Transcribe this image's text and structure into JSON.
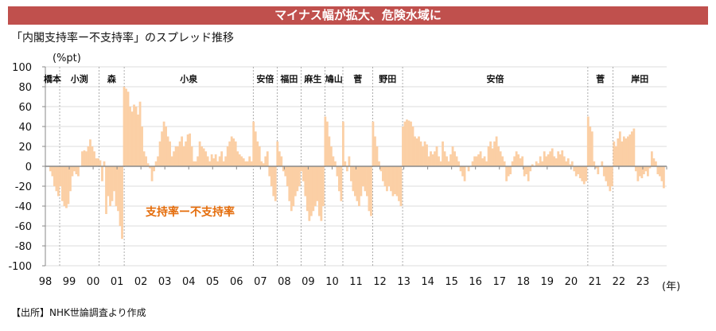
{
  "header": {
    "banner": "マイナス幅が拡大、危険水域に"
  },
  "subtitle": "「内閣支持率ー不支持率」のスプレッド推移",
  "source": "【出所】NHK世論調査より作成",
  "chart_data": {
    "type": "bar",
    "title": "「内閣支持率ー不支持率」のスプレッド推移",
    "ylabel": "(%pt)",
    "xlabel": "(年)",
    "ylim": [
      -100,
      100
    ],
    "xlim": [
      1998,
      2024
    ],
    "yticks": [
      100,
      80,
      60,
      40,
      20,
      0,
      -20,
      -40,
      -60,
      -80,
      -100
    ],
    "xtick_labels": [
      "98",
      "99",
      "00",
      "01",
      "02",
      "03",
      "04",
      "05",
      "06",
      "07",
      "08",
      "09",
      "10",
      "11",
      "12",
      "13",
      "14",
      "15",
      "16",
      "17",
      "18",
      "19",
      "20",
      "21",
      "22",
      "23"
    ],
    "grid": true,
    "series_name": "支持率ー不支持率",
    "color": "#fbcfa5",
    "start_month": "1998-03",
    "frequency": "monthly",
    "values": [
      -5,
      -10,
      -20,
      -25,
      -30,
      -20,
      -35,
      -40,
      -42,
      -38,
      -25,
      -10,
      -5,
      -8,
      -10,
      0,
      15,
      16,
      15,
      20,
      27,
      20,
      15,
      8,
      8,
      6,
      -15,
      5,
      -48,
      -30,
      -40,
      -35,
      -25,
      -40,
      -45,
      -60,
      -73,
      80,
      78,
      75,
      60,
      55,
      62,
      60,
      52,
      65,
      40,
      15,
      10,
      3,
      -2,
      -15,
      -5,
      5,
      10,
      25,
      35,
      45,
      40,
      30,
      25,
      10,
      15,
      20,
      20,
      25,
      30,
      20,
      25,
      32,
      33,
      20,
      5,
      5,
      10,
      25,
      20,
      18,
      15,
      10,
      5,
      12,
      8,
      12,
      5,
      10,
      15,
      5,
      10,
      20,
      25,
      30,
      28,
      25,
      15,
      12,
      10,
      8,
      5,
      5,
      10,
      5,
      45,
      35,
      25,
      20,
      5,
      3,
      10,
      15,
      -10,
      -20,
      -30,
      -35,
      25,
      15,
      10,
      -5,
      -10,
      -20,
      -35,
      -45,
      -40,
      -30,
      -25,
      -20,
      -5,
      -15,
      -30,
      -45,
      -55,
      -50,
      -45,
      -40,
      -35,
      -50,
      -55,
      -40,
      50,
      45,
      30,
      20,
      10,
      5,
      -10,
      -25,
      -35,
      45,
      5,
      -5,
      10,
      -15,
      -25,
      -30,
      -35,
      -40,
      -30,
      -20,
      -25,
      -30,
      -45,
      -50,
      45,
      30,
      20,
      5,
      -5,
      -15,
      -20,
      -25,
      -20,
      -25,
      -30,
      -28,
      -30,
      -35,
      -40,
      40,
      45,
      47,
      46,
      45,
      40,
      30,
      28,
      30,
      25,
      20,
      25,
      22,
      10,
      15,
      12,
      15,
      20,
      10,
      5,
      25,
      15,
      10,
      5,
      12,
      20,
      15,
      10,
      5,
      -5,
      -10,
      -15,
      0,
      -5,
      0,
      5,
      10,
      10,
      12,
      15,
      8,
      10,
      5,
      20,
      25,
      18,
      25,
      30,
      20,
      15,
      10,
      5,
      -15,
      -10,
      -8,
      5,
      10,
      15,
      12,
      8,
      10,
      -10,
      -8,
      -15,
      -5,
      2,
      0,
      5,
      3,
      10,
      5,
      15,
      10,
      12,
      15,
      18,
      10,
      8,
      15,
      12,
      16,
      10,
      5,
      8,
      2,
      5,
      -5,
      -10,
      -8,
      -12,
      -15,
      -18,
      -15,
      50,
      40,
      35,
      5,
      -2,
      -8,
      0,
      5,
      -10,
      -15,
      -20,
      -25,
      -20,
      25,
      20,
      28,
      35,
      25,
      30,
      28,
      30,
      32,
      35,
      38,
      -5,
      -15,
      -10,
      -12,
      -8,
      -5,
      -10,
      -2,
      15,
      8,
      5,
      -8,
      -10,
      -15,
      -22
    ],
    "cabinets": [
      {
        "name": "橋本",
        "start": 1998.0,
        "end": 1998.6
      },
      {
        "name": "小渕",
        "start": 1998.6,
        "end": 2000.25
      },
      {
        "name": "森",
        "start": 2000.25,
        "end": 2001.3
      },
      {
        "name": "小泉",
        "start": 2001.3,
        "end": 2006.7
      },
      {
        "name": "安倍",
        "start": 2006.7,
        "end": 2007.7
      },
      {
        "name": "福田",
        "start": 2007.7,
        "end": 2008.7
      },
      {
        "name": "麻生",
        "start": 2008.7,
        "end": 2009.7
      },
      {
        "name": "鳩山",
        "start": 2009.7,
        "end": 2010.45
      },
      {
        "name": "菅",
        "start": 2010.45,
        "end": 2011.7
      },
      {
        "name": "野田",
        "start": 2011.7,
        "end": 2012.95
      },
      {
        "name": "安倍",
        "start": 2012.95,
        "end": 2020.7
      },
      {
        "name": "菅",
        "start": 2020.7,
        "end": 2021.75
      },
      {
        "name": "岸田",
        "start": 2021.75,
        "end": 2024.0
      }
    ],
    "annotation": "支持率ー不支持率"
  }
}
